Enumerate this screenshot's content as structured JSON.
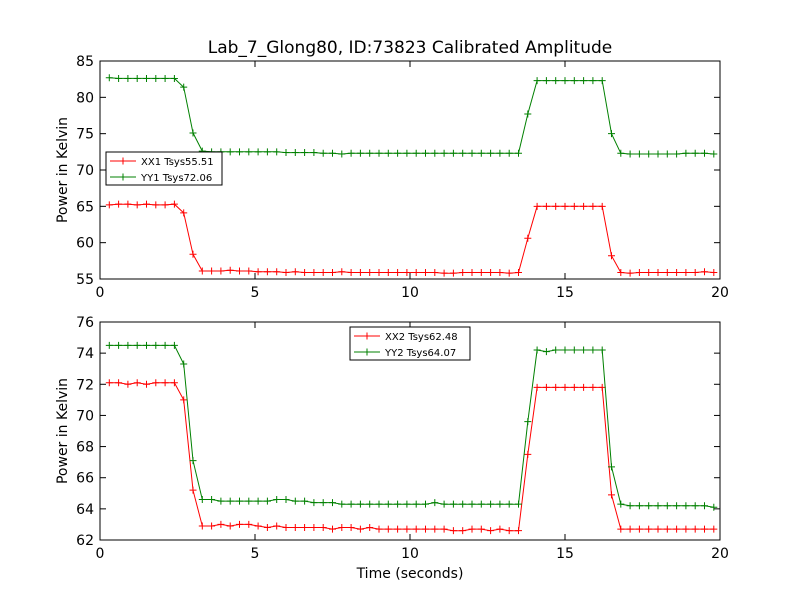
{
  "figure": {
    "title": "Lab_7_Glong80, ID:73823 Calibrated Amplitude",
    "xlabel": "Time (seconds)"
  },
  "chart_data": [
    {
      "type": "line",
      "ylabel": "Power in Kelvin",
      "xlim": [
        0,
        20
      ],
      "ylim": [
        55,
        85
      ],
      "xticks": [
        0,
        5,
        10,
        15,
        20
      ],
      "yticks": [
        55,
        60,
        65,
        70,
        75,
        80,
        85
      ],
      "grid": false,
      "legend_position": "center-left",
      "x": [
        0.3,
        0.6,
        0.9,
        1.2,
        1.5,
        1.8,
        2.1,
        2.4,
        2.7,
        3.0,
        3.3,
        3.6,
        3.9,
        4.2,
        4.5,
        4.8,
        5.1,
        5.4,
        5.7,
        6.0,
        6.3,
        6.6,
        6.9,
        7.2,
        7.5,
        7.8,
        8.1,
        8.4,
        8.7,
        9.0,
        9.3,
        9.6,
        9.9,
        10.2,
        10.5,
        10.8,
        11.1,
        11.4,
        11.7,
        12.0,
        12.3,
        12.6,
        12.9,
        13.2,
        13.5,
        13.8,
        14.1,
        14.4,
        14.7,
        15.0,
        15.3,
        15.6,
        15.9,
        16.2,
        16.5,
        16.8,
        17.1,
        17.4,
        17.7,
        18.0,
        18.3,
        18.6,
        18.9,
        19.2,
        19.5,
        19.8
      ],
      "series": [
        {
          "name": "XX1 Tsys55.51",
          "color": "#ff0000",
          "values": [
            65.2,
            65.3,
            65.3,
            65.2,
            65.3,
            65.2,
            65.2,
            65.3,
            64.1,
            58.4,
            56.1,
            56.1,
            56.1,
            56.2,
            56.1,
            56.1,
            56.0,
            56.0,
            56.0,
            55.9,
            56.0,
            55.9,
            55.9,
            55.9,
            55.9,
            56.0,
            55.9,
            55.9,
            55.9,
            55.9,
            55.9,
            55.9,
            55.9,
            55.9,
            55.9,
            55.9,
            55.8,
            55.8,
            55.9,
            55.9,
            55.9,
            55.9,
            55.9,
            55.8,
            55.9,
            60.6,
            65.0,
            65.0,
            65.0,
            65.0,
            65.0,
            65.0,
            65.0,
            65.0,
            58.2,
            55.9,
            55.8,
            55.9,
            55.9,
            55.9,
            55.9,
            55.9,
            55.9,
            55.9,
            56.0,
            55.9
          ]
        },
        {
          "name": "YY1 Tsys72.06",
          "color": "#008000",
          "values": [
            82.7,
            82.6,
            82.6,
            82.6,
            82.6,
            82.6,
            82.6,
            82.6,
            81.4,
            75.1,
            72.6,
            72.5,
            72.5,
            72.5,
            72.5,
            72.5,
            72.5,
            72.5,
            72.5,
            72.4,
            72.4,
            72.4,
            72.4,
            72.3,
            72.3,
            72.2,
            72.3,
            72.3,
            72.3,
            72.3,
            72.3,
            72.3,
            72.3,
            72.3,
            72.3,
            72.3,
            72.3,
            72.3,
            72.3,
            72.3,
            72.3,
            72.3,
            72.3,
            72.3,
            72.3,
            77.7,
            82.3,
            82.3,
            82.3,
            82.3,
            82.3,
            82.3,
            82.3,
            82.3,
            75.0,
            72.3,
            72.2,
            72.2,
            72.2,
            72.2,
            72.2,
            72.2,
            72.3,
            72.3,
            72.3,
            72.2
          ]
        }
      ]
    },
    {
      "type": "line",
      "ylabel": "Power in Kelvin",
      "xlabel": "Time (seconds)",
      "xlim": [
        0,
        20
      ],
      "ylim": [
        62,
        76
      ],
      "xticks": [
        0,
        5,
        10,
        15,
        20
      ],
      "yticks": [
        62,
        64,
        66,
        68,
        70,
        72,
        74,
        76
      ],
      "grid": false,
      "legend_position": "top-center",
      "x": [
        0.3,
        0.6,
        0.9,
        1.2,
        1.5,
        1.8,
        2.1,
        2.4,
        2.7,
        3.0,
        3.3,
        3.6,
        3.9,
        4.2,
        4.5,
        4.8,
        5.1,
        5.4,
        5.7,
        6.0,
        6.3,
        6.6,
        6.9,
        7.2,
        7.5,
        7.8,
        8.1,
        8.4,
        8.7,
        9.0,
        9.3,
        9.6,
        9.9,
        10.2,
        10.5,
        10.8,
        11.1,
        11.4,
        11.7,
        12.0,
        12.3,
        12.6,
        12.9,
        13.2,
        13.5,
        13.8,
        14.1,
        14.4,
        14.7,
        15.0,
        15.3,
        15.6,
        15.9,
        16.2,
        16.5,
        16.8,
        17.1,
        17.4,
        17.7,
        18.0,
        18.3,
        18.6,
        18.9,
        19.2,
        19.5,
        19.8
      ],
      "series": [
        {
          "name": "XX2 Tsys62.48",
          "color": "#ff0000",
          "values": [
            72.1,
            72.1,
            72.0,
            72.1,
            72.0,
            72.1,
            72.1,
            72.1,
            71.0,
            65.2,
            62.9,
            62.9,
            63.0,
            62.9,
            63.0,
            63.0,
            62.9,
            62.8,
            62.9,
            62.8,
            62.8,
            62.8,
            62.8,
            62.8,
            62.7,
            62.8,
            62.8,
            62.7,
            62.8,
            62.7,
            62.7,
            62.7,
            62.7,
            62.7,
            62.7,
            62.7,
            62.7,
            62.6,
            62.6,
            62.7,
            62.7,
            62.6,
            62.7,
            62.6,
            62.6,
            67.5,
            71.8,
            71.8,
            71.8,
            71.8,
            71.8,
            71.8,
            71.8,
            71.8,
            64.9,
            62.7,
            62.7,
            62.7,
            62.7,
            62.7,
            62.7,
            62.7,
            62.7,
            62.7,
            62.7,
            62.7
          ]
        },
        {
          "name": "YY2 Tsys64.07",
          "color": "#008000",
          "values": [
            74.5,
            74.5,
            74.5,
            74.5,
            74.5,
            74.5,
            74.5,
            74.5,
            73.3,
            67.1,
            64.6,
            64.6,
            64.5,
            64.5,
            64.5,
            64.5,
            64.5,
            64.5,
            64.6,
            64.6,
            64.5,
            64.5,
            64.4,
            64.4,
            64.4,
            64.3,
            64.3,
            64.3,
            64.3,
            64.3,
            64.3,
            64.3,
            64.3,
            64.3,
            64.3,
            64.4,
            64.3,
            64.3,
            64.3,
            64.3,
            64.3,
            64.3,
            64.3,
            64.3,
            64.3,
            69.6,
            74.2,
            74.1,
            74.2,
            74.2,
            74.2,
            74.2,
            74.2,
            74.2,
            66.7,
            64.3,
            64.2,
            64.2,
            64.2,
            64.2,
            64.2,
            64.2,
            64.2,
            64.2,
            64.2,
            64.1
          ]
        }
      ]
    }
  ]
}
